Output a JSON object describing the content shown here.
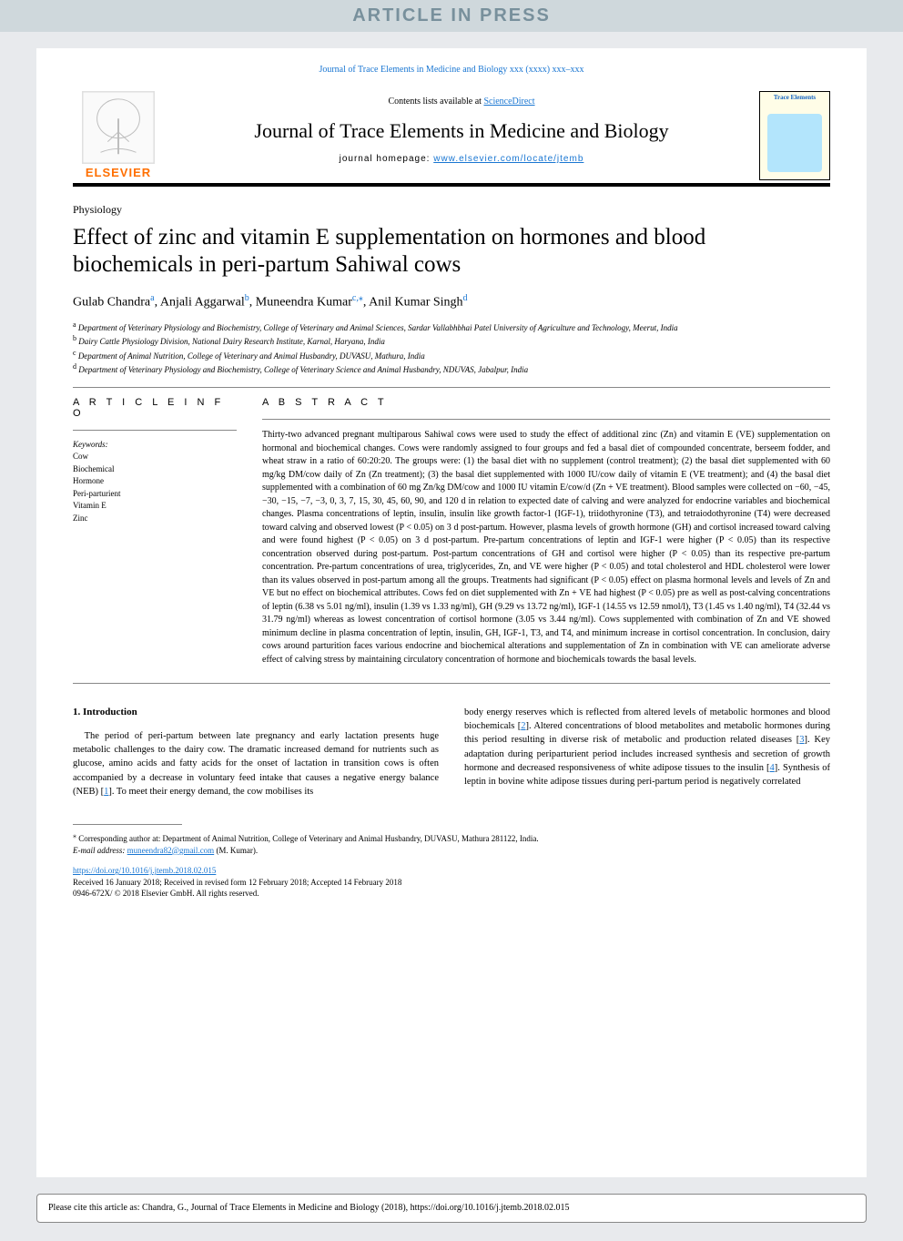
{
  "aip_banner": "ARTICLE IN PRESS",
  "top_link": "Journal of Trace Elements in Medicine and Biology xxx (xxxx) xxx–xxx",
  "header": {
    "contents_prefix": "Contents lists available at ",
    "contents_link": "ScienceDirect",
    "journal_title": "Journal of Trace Elements in Medicine and Biology",
    "homepage_prefix": "journal homepage: ",
    "homepage_link": "www.elsevier.com/locate/jtemb",
    "elsevier_label": "ELSEVIER",
    "cover_title": "Trace Elements"
  },
  "section_tag": "Physiology",
  "title": "Effect of zinc and vitamin E supplementation on hormones and blood biochemicals in peri-partum Sahiwal cows",
  "authors_html": "Gulab Chandra|a|, Anjali Aggarwal|b|, Muneendra Kumar|c,⁎|, Anil Kumar Singh|d",
  "authors": [
    {
      "name": "Gulab Chandra",
      "sup": "a"
    },
    {
      "name": "Anjali Aggarwal",
      "sup": "b"
    },
    {
      "name": "Muneendra Kumar",
      "sup": "c,⁎"
    },
    {
      "name": "Anil Kumar Singh",
      "sup": "d"
    }
  ],
  "affiliations": [
    {
      "sup": "a",
      "text": "Department of Veterinary Physiology and Biochemistry, College of Veterinary and Animal Sciences, Sardar Vallabhbhai Patel University of Agriculture and Technology, Meerut, India"
    },
    {
      "sup": "b",
      "text": "Dairy Cattle Physiology Division, National Dairy Research Institute, Karnal, Haryana, India"
    },
    {
      "sup": "c",
      "text": "Department of Animal Nutrition, College of Veterinary and Animal Husbandry, DUVASU, Mathura, India"
    },
    {
      "sup": "d",
      "text": "Department of Veterinary Physiology and Biochemistry, College of Veterinary Science and Animal Husbandry, NDUVAS, Jabalpur, India"
    }
  ],
  "article_info_head": "A R T I C L E  I N F O",
  "abstract_head": "A B S T R A C T",
  "keywords_label": "Keywords:",
  "keywords": [
    "Cow",
    "Biochemical",
    "Hormone",
    "Peri-parturient",
    "Vitamin E",
    "Zinc"
  ],
  "abstract": "Thirty-two advanced pregnant multiparous Sahiwal cows were used to study the effect of additional zinc (Zn) and vitamin E (VE) supplementation on hormonal and biochemical changes. Cows were randomly assigned to four groups and fed a basal diet of compounded concentrate, berseem fodder, and wheat straw in a ratio of 60:20:20. The groups were: (1) the basal diet with no supplement (control treatment); (2) the basal diet supplemented with 60 mg/kg DM/cow daily of Zn (Zn treatment); (3) the basal diet supplemented with 1000 IU/cow daily of vitamin E (VE treatment); and (4) the basal diet supplemented with a combination of 60 mg Zn/kg DM/cow and 1000 IU vitamin E/cow/d (Zn + VE treatment). Blood samples were collected on −60, −45, −30, −15, −7, −3, 0, 3, 7, 15, 30, 45, 60, 90, and 120 d in relation to expected date of calving and were analyzed for endocrine variables and biochemical changes. Plasma concentrations of leptin, insulin, insulin like growth factor-1 (IGF-1), triidothyronine (T3), and tetraiodothyronine (T4) were decreased toward calving and observed lowest (P < 0.05) on 3 d post-partum. However, plasma levels of growth hormone (GH) and cortisol increased toward calving and were found highest (P < 0.05) on 3 d post-partum. Pre-partum concentrations of leptin and IGF-1 were higher (P < 0.05) than its respective concentration observed during post-partum. Post-partum concentrations of GH and cortisol were higher (P < 0.05) than its respective pre-partum concentration. Pre-partum concentrations of urea, triglycerides, Zn, and VE were higher (P < 0.05) and total cholesterol and HDL cholesterol were lower than its values observed in post-partum among all the groups. Treatments had significant (P < 0.05) effect on plasma hormonal levels and levels of Zn and VE but no effect on biochemical attributes. Cows fed on diet supplemented with Zn + VE had highest (P < 0.05) pre as well as post-calving concentrations of leptin (6.38 vs 5.01 ng/ml), insulin (1.39 vs 1.33 ng/ml), GH (9.29 vs 13.72 ng/ml), IGF-1 (14.55 vs 12.59 nmol/l), T3 (1.45 vs 1.40 ng/ml), T4 (32.44 vs 31.79 ng/ml) whereas as lowest concentration of cortisol hormone (3.05 vs 3.44 ng/ml). Cows supplemented with combination of Zn and VE showed minimum decline in plasma concentration of leptin, insulin, GH, IGF-1, T3, and T4, and minimum increase in cortisol concentration. In conclusion, dairy cows around parturition faces various endocrine and biochemical alterations and supplementation of Zn in combination with VE can ameliorate adverse effect of calving stress by maintaining circulatory concentration of hormone and biochemicals towards the basal levels.",
  "intro_head": "1. Introduction",
  "intro_col1": "The period of peri-partum between late pregnancy and early lactation presents huge metabolic challenges to the dairy cow. The dramatic increased demand for nutrients such as glucose, amino acids and fatty acids for the onset of lactation in transition cows is often accompanied by a decrease in voluntary feed intake that causes a negative energy balance (NEB) [1]. To meet their energy demand, the cow mobilises its",
  "intro_col2": "body energy reserves which is reflected from altered levels of metabolic hormones and blood biochemicals [2]. Altered concentrations of blood metabolites and metabolic hormones during this period resulting in diverse risk of metabolic and production related diseases [3]. Key adaptation during periparturient period includes increased synthesis and secretion of growth hormone and decreased responsiveness of white adipose tissues to the insulin [4]. Synthesis of leptin in bovine white adipose tissues during peri-partum period is negatively correlated",
  "footer": {
    "corr_marker": "⁎",
    "corr_text": "Corresponding author at: Department of Animal Nutrition, College of Veterinary and Animal Husbandry, DUVASU, Mathura 281122, India.",
    "email_label": "E-mail address: ",
    "email": "muneendra82@gmail.com",
    "email_suffix": " (M. Kumar).",
    "doi": "https://doi.org/10.1016/j.jtemb.2018.02.015",
    "received": "Received 16 January 2018; Received in revised form 12 February 2018; Accepted 14 February 2018",
    "issn": "0946-672X/ © 2018 Elsevier GmbH. All rights reserved."
  },
  "cite_box": "Please cite this article as: Chandra, G., Journal of Trace Elements in Medicine and Biology (2018), https://doi.org/10.1016/j.jtemb.2018.02.015",
  "colors": {
    "link": "#1976d2",
    "banner_bg": "#cfd8dc",
    "banner_fg": "#78909c",
    "page_bg": "#e8eaed",
    "elsevier_orange": "#ff6f00"
  }
}
